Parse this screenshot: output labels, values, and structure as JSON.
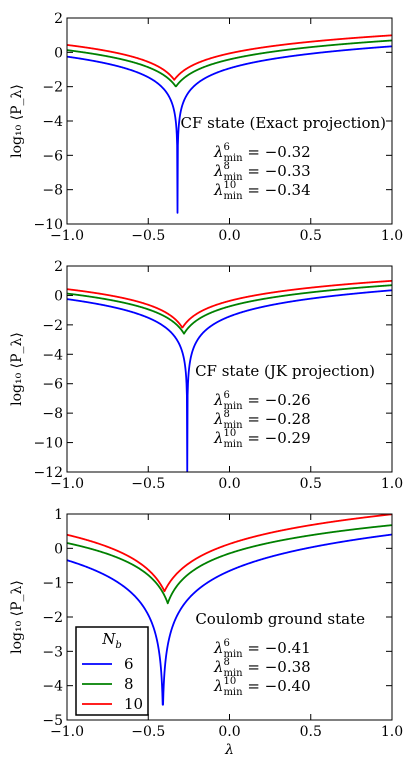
{
  "chart_data": [
    {
      "type": "line",
      "title": "",
      "xlabel": "",
      "ylabel": "log₁₀ ⟨P_λ⟩",
      "xlim": [
        -1.0,
        1.0
      ],
      "ylim": [
        -10,
        2
      ],
      "xticks": [
        "−1.0",
        "−0.5",
        "0.0",
        "0.5",
        "1.0"
      ],
      "yticks": [
        "2",
        "0",
        "−2",
        "−4",
        "−6",
        "−8",
        "−10"
      ],
      "annotation": "CF state (Exact projection)",
      "minima_text": [
        {
          "sup": "6",
          "value": " = −0.32"
        },
        {
          "sup": "8",
          "value": " = −0.33"
        },
        {
          "sup": "10",
          "value": " = −0.34"
        }
      ],
      "series": [
        {
          "Nb": 6,
          "color": "#0000ff",
          "lambda_min": -0.32,
          "y_at_min": -9.35,
          "y_left": -0.25,
          "y_right": 0.35
        },
        {
          "Nb": 8,
          "color": "#008000",
          "lambda_min": -0.33,
          "y_at_min": -2.0,
          "y_left": 0.05,
          "y_right": 0.65
        },
        {
          "Nb": 10,
          "color": "#ff0000",
          "lambda_min": -0.34,
          "y_at_min": -1.6,
          "y_left": 0.35,
          "y_right": 0.95
        }
      ]
    },
    {
      "type": "line",
      "title": "",
      "xlabel": "",
      "ylabel": "log₁₀ ⟨P_λ⟩",
      "xlim": [
        -1.0,
        1.0
      ],
      "ylim": [
        -12,
        2
      ],
      "xticks": [
        "−1.0",
        "−0.5",
        "0.0",
        "0.5",
        "1.0"
      ],
      "yticks": [
        "2",
        "0",
        "−2",
        "−4",
        "−6",
        "−8",
        "−10",
        "−12"
      ],
      "annotation": "CF state (JK projection)",
      "minima_text": [
        {
          "sup": "6",
          "value": " = −0.26"
        },
        {
          "sup": "8",
          "value": " = −0.28"
        },
        {
          "sup": "10",
          "value": " = −0.29"
        }
      ],
      "series": [
        {
          "Nb": 6,
          "color": "#0000ff",
          "lambda_min": -0.26,
          "y_at_min": -12.0,
          "y_left": -0.25,
          "y_right": 0.35
        },
        {
          "Nb": 8,
          "color": "#008000",
          "lambda_min": -0.28,
          "y_at_min": -2.6,
          "y_left": 0.05,
          "y_right": 0.65
        },
        {
          "Nb": 10,
          "color": "#ff0000",
          "lambda_min": -0.29,
          "y_at_min": -2.2,
          "y_left": 0.35,
          "y_right": 0.95
        }
      ]
    },
    {
      "type": "line",
      "title": "",
      "xlabel": "λ",
      "ylabel": "log₁₀ ⟨P_λ⟩",
      "xlim": [
        -1.0,
        1.0
      ],
      "ylim": [
        -5,
        1
      ],
      "xticks": [
        "−1.0",
        "−0.5",
        "0.0",
        "0.5",
        "1.0"
      ],
      "yticks": [
        "1",
        "0",
        "−1",
        "−2",
        "−3",
        "−4",
        "−5"
      ],
      "annotation": "Coulomb ground state",
      "minima_text": [
        {
          "sup": "6",
          "value": " = −0.41"
        },
        {
          "sup": "8",
          "value": " = −0.38"
        },
        {
          "sup": "10",
          "value": " = −0.40"
        }
      ],
      "legend": {
        "title": "N_b",
        "placement": "lower-left",
        "entries": [
          "6",
          "8",
          "10"
        ]
      },
      "series": [
        {
          "Nb": 6,
          "color": "#0000ff",
          "lambda_min": -0.41,
          "y_at_min": -4.8,
          "y_left": -0.35,
          "y_right": 0.4
        },
        {
          "Nb": 8,
          "color": "#008000",
          "lambda_min": -0.38,
          "y_at_min": -1.6,
          "y_left": 0.1,
          "y_right": 0.65
        },
        {
          "Nb": 10,
          "color": "#ff0000",
          "lambda_min": -0.4,
          "y_at_min": -1.25,
          "y_left": 0.3,
          "y_right": 0.95
        }
      ]
    }
  ]
}
